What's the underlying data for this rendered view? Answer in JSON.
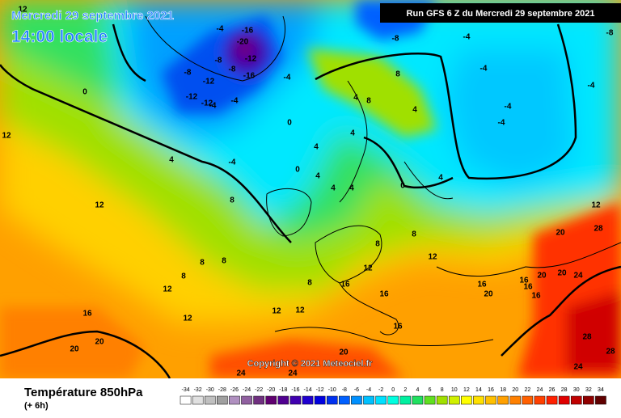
{
  "header": {
    "date": "Mercredi 29 septembre 2021",
    "time": "14:00 locale",
    "run": "Run GFS 6 Z du Mercredi 29 septembre 2021"
  },
  "copyright": "Copyright © 2021 Meteociel.fr",
  "footer": {
    "title": "Température 850hPa",
    "step": "(+ 6h)"
  },
  "scale": {
    "values": [
      -34,
      -32,
      -30,
      -28,
      -26,
      -24,
      -22,
      -20,
      -18,
      -16,
      -14,
      -12,
      -10,
      -8,
      -6,
      -4,
      -2,
      0,
      2,
      4,
      6,
      8,
      10,
      12,
      14,
      16,
      18,
      20,
      22,
      24,
      26,
      28,
      30,
      32,
      34
    ],
    "colors": [
      "#ffffff",
      "#e0e0e0",
      "#c0c0c0",
      "#a0a0a0",
      "#b090c0",
      "#9060a0",
      "#703080",
      "#600070",
      "#500090",
      "#4000b0",
      "#2000d0",
      "#0000e0",
      "#0030f0",
      "#0060ff",
      "#0090ff",
      "#00c0ff",
      "#00e0ff",
      "#00ffe0",
      "#00f0a0",
      "#20e060",
      "#60e020",
      "#a0e000",
      "#d0f000",
      "#ffff00",
      "#ffe000",
      "#ffc000",
      "#ffa000",
      "#ff8000",
      "#ff6000",
      "#ff4000",
      "#ff2000",
      "#e00000",
      "#c00000",
      "#900000",
      "#600000"
    ]
  },
  "map_labels": [
    "-16",
    "-20",
    "-12",
    "-8",
    "-16",
    "-12",
    "-4",
    "-4",
    "-8",
    "-12",
    "-4",
    "-12",
    "-4",
    "-8",
    "0",
    "0",
    "4",
    "-4",
    "8",
    "12",
    "12",
    "8",
    "8",
    "8",
    "12",
    "12",
    "16",
    "20",
    "20",
    "24",
    "24",
    "20",
    "16",
    "16",
    "16",
    "12",
    "12",
    "12",
    "8",
    "8",
    "8",
    "12",
    "16",
    "20",
    "16",
    "16",
    "16",
    "20",
    "20",
    "24",
    "20",
    "28",
    "28",
    "28",
    "24",
    "12",
    "4",
    "4",
    "4",
    "0",
    "4",
    "4",
    "4",
    "8",
    "8",
    "4",
    "-4",
    "-8",
    "-4",
    "-4",
    "-4",
    "0",
    "4",
    "-4",
    "-8",
    "12"
  ]
}
